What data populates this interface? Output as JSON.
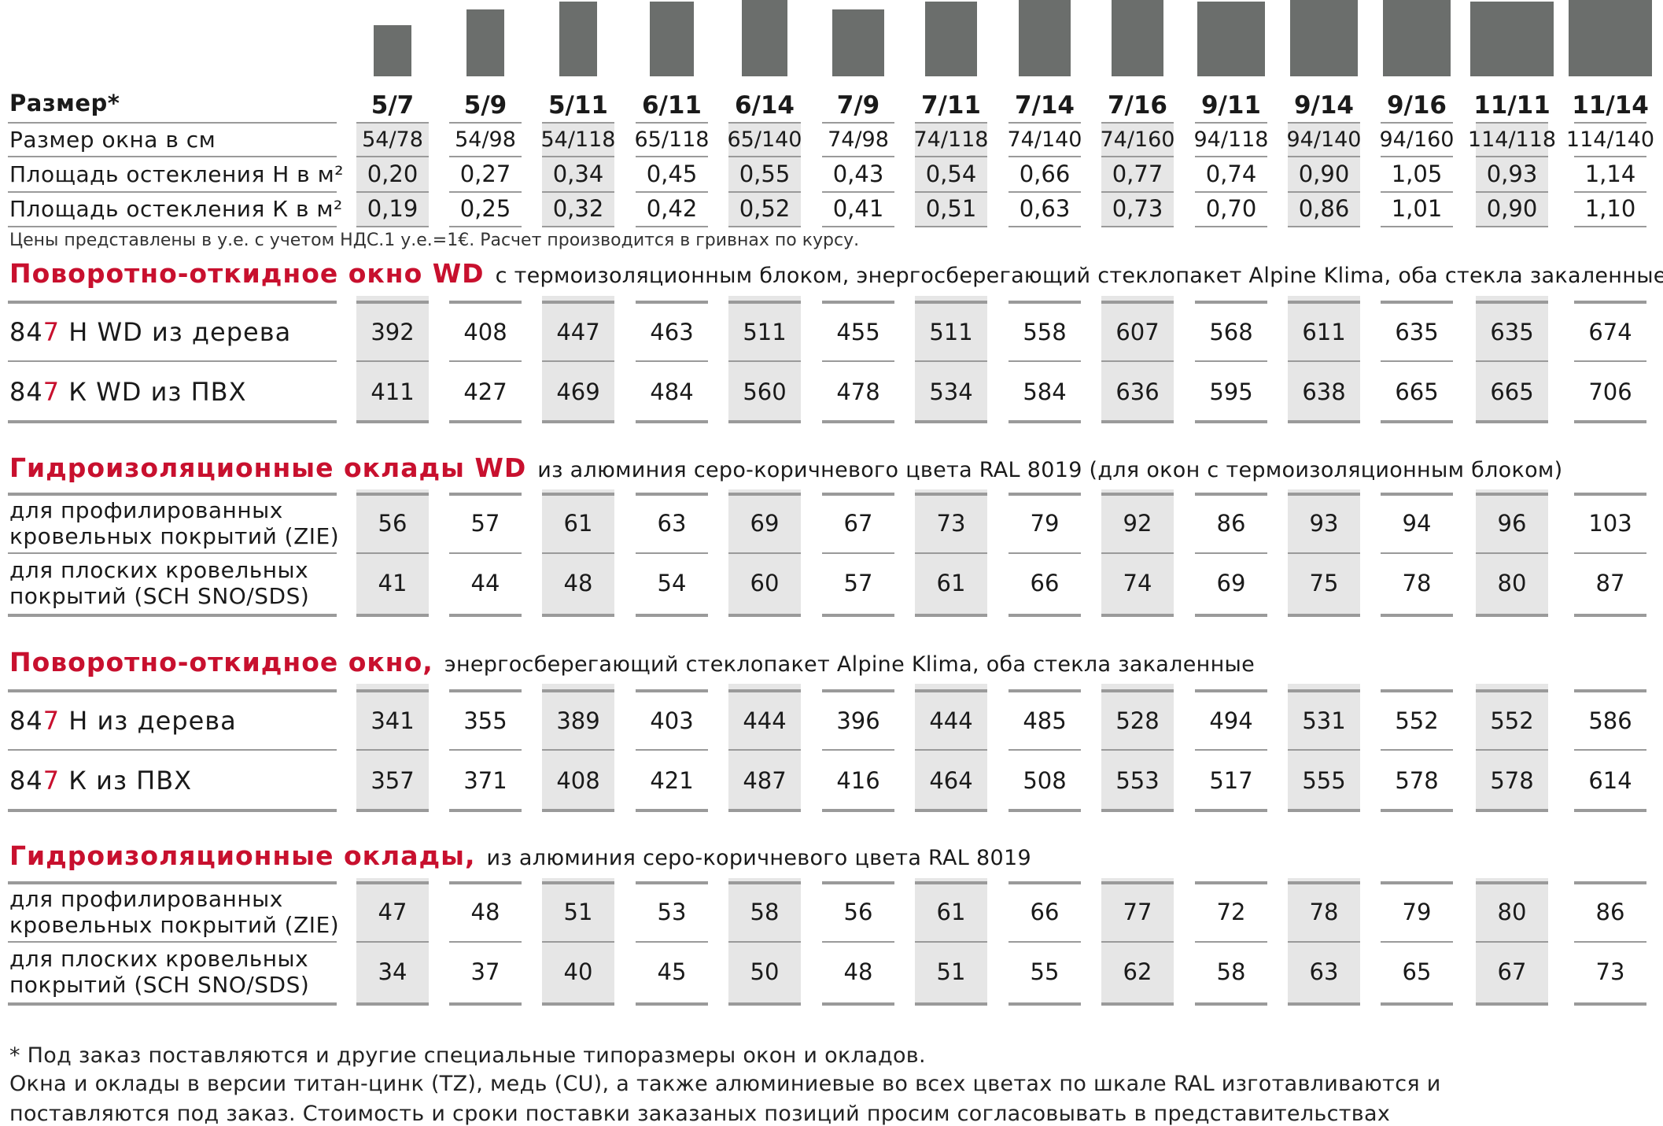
{
  "sizes": [
    "5/7",
    "5/9",
    "5/11",
    "6/11",
    "6/14",
    "7/9",
    "7/11",
    "7/14",
    "7/16",
    "9/11",
    "9/14",
    "9/16",
    "11/11",
    "11/14"
  ],
  "header": {
    "size_label": "Размер*",
    "window_size_label": "Размер окна в см",
    "glazing_h_label": "Площадь остекления Н в м²",
    "glazing_k_label": "Площадь остекления К в м²"
  },
  "window_sizes": [
    "54/78",
    "54/98",
    "54/118",
    "65/118",
    "65/140",
    "74/98",
    "74/118",
    "74/140",
    "74/160",
    "94/118",
    "94/140",
    "94/160",
    "114/118",
    "114/140"
  ],
  "glazing_h": [
    "0,20",
    "0,27",
    "0,34",
    "0,45",
    "0,55",
    "0,43",
    "0,54",
    "0,66",
    "0,77",
    "0,74",
    "0,90",
    "1,05",
    "0,93",
    "1,14"
  ],
  "glazing_k": [
    "0,19",
    "0,25",
    "0,32",
    "0,42",
    "0,52",
    "0,41",
    "0,51",
    "0,63",
    "0,73",
    "0,70",
    "0,86",
    "1,01",
    "0,90",
    "1,10"
  ],
  "price_note": "Цены представлены в у.е. с учетом НДС.1 у.е.=1€. Расчет производится в гривнах по курсу.",
  "sections": [
    {
      "title": "Поворотно-откидное окно WD",
      "desc": "с термоизоляционным блоком, энергосберегающий стеклопакет Alpine Klima,  оба стекла закаленные",
      "rows": [
        {
          "prefix": "84",
          "red": "7",
          "suffix": " Н WD из дерева",
          "values": [
            "392",
            "408",
            "447",
            "463",
            "511",
            "455",
            "511",
            "558",
            "607",
            "568",
            "611",
            "635",
            "635",
            "674"
          ]
        },
        {
          "prefix": "84",
          "red": "7",
          "suffix": " К WD из ПВХ",
          "values": [
            "411",
            "427",
            "469",
            "484",
            "560",
            "478",
            "534",
            "584",
            "636",
            "595",
            "638",
            "665",
            "665",
            "706"
          ]
        }
      ]
    },
    {
      "title": "Гидроизоляционные оклады WD",
      "desc": "из алюминия серо-коричневого цвета RAL 8019 (для окон с термоизоляционным блоком)",
      "rows": [
        {
          "line1": "для профилированных",
          "line2": "кровельных покрытий (ZIE)",
          "values": [
            "56",
            "57",
            "61",
            "63",
            "69",
            "67",
            "73",
            "79",
            "92",
            "86",
            "93",
            "94",
            "96",
            "103"
          ]
        },
        {
          "line1": "для плоских кровельных",
          "line2": "покрытий (SCH SNO/SDS)",
          "values": [
            "41",
            "44",
            "48",
            "54",
            "60",
            "57",
            "61",
            "66",
            "74",
            "69",
            "75",
            "78",
            "80",
            "87"
          ]
        }
      ]
    },
    {
      "title": "Поворотно-откидное окно,",
      "desc": "энергосберегающий стеклопакет Alpine Klima, оба стекла закаленные",
      "rows": [
        {
          "prefix": "84",
          "red": "7",
          "suffix": " Н из дерева",
          "values": [
            "341",
            "355",
            "389",
            "403",
            "444",
            "396",
            "444",
            "485",
            "528",
            "494",
            "531",
            "552",
            "552",
            "586"
          ]
        },
        {
          "prefix": "84",
          "red": "7",
          "suffix": " К из ПВХ",
          "values": [
            "357",
            "371",
            "408",
            "421",
            "487",
            "416",
            "464",
            "508",
            "553",
            "517",
            "555",
            "578",
            "578",
            "614"
          ]
        }
      ]
    },
    {
      "title": "Гидроизоляционные оклады,",
      "desc": "из алюминия серо-коричневого цвета RAL 8019",
      "rows": [
        {
          "line1": "для профилированных",
          "line2": "кровельных покрытий (ZIE)",
          "values": [
            "47",
            "48",
            "51",
            "53",
            "58",
            "56",
            "61",
            "66",
            "77",
            "72",
            "78",
            "79",
            "80",
            "86"
          ]
        },
        {
          "line1": "для плоских кровельных",
          "line2": "покрытий (SCH SNO/SDS)",
          "values": [
            "34",
            "37",
            "40",
            "45",
            "50",
            "48",
            "51",
            "55",
            "62",
            "58",
            "63",
            "65",
            "67",
            "73"
          ]
        }
      ]
    }
  ],
  "footnotes": [
    "* Под заказ поставляются и другие специальные типоразмеры окон и окладов.",
    "Окна и оклады в версии титан-цинк (TZ), медь (CU), а также алюминиевые во всех цветах по шкале RAL изготавливаются и",
    "поставляются под заказ. Стоимость и сроки поставки заказаных позиций просим согласовывать в представительствах"
  ],
  "colors": {
    "accent": "#c8102e",
    "bar": "#6b6e6c",
    "stripe": "#e6e6e6"
  }
}
